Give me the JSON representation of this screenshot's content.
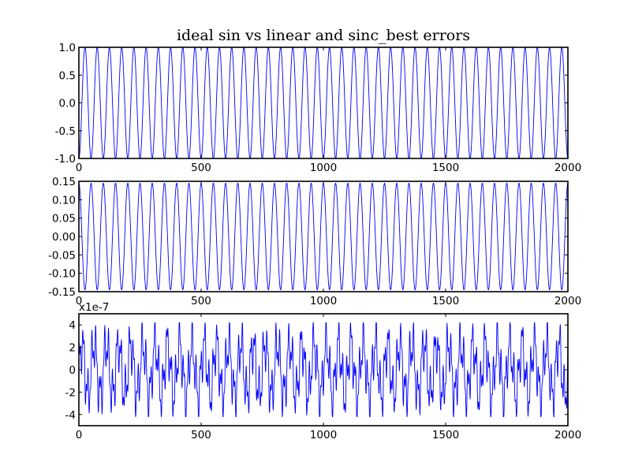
{
  "chart_data": [
    {
      "type": "line",
      "title": "ideal sin vs linear and sinc_best errors",
      "xlim": [
        0,
        2000
      ],
      "ylim": [
        -1.0,
        1.0
      ],
      "x_ticks": [
        0,
        500,
        1000,
        1500,
        2000
      ],
      "x_tick_labels": [
        "0",
        "500",
        "1000",
        "1500",
        "2000"
      ],
      "y_ticks": [
        -1.0,
        -0.5,
        0.0,
        0.5,
        1.0
      ],
      "y_tick_labels": [
        "-1.0",
        "-0.5",
        "0.0",
        "0.5",
        "1.0"
      ],
      "series": [
        {
          "color": "#0000ff",
          "generator": {
            "kind": "sine",
            "amplitude": 1.0,
            "cycles": 40,
            "phase": -1.5708,
            "n": 2001
          }
        }
      ]
    },
    {
      "type": "line",
      "xlim": [
        0,
        2000
      ],
      "ylim": [
        -0.15,
        0.15
      ],
      "x_ticks": [
        0,
        500,
        1000,
        1500,
        2000
      ],
      "x_tick_labels": [
        "0",
        "500",
        "1000",
        "1500",
        "2000"
      ],
      "y_ticks": [
        -0.15,
        -0.1,
        -0.05,
        0.0,
        0.05,
        0.1,
        0.15
      ],
      "y_tick_labels": [
        "-0.15",
        "-0.10",
        "-0.05",
        "0.00",
        "0.05",
        "0.10",
        "0.15"
      ],
      "series": [
        {
          "color": "#0000ff",
          "generator": {
            "kind": "sine",
            "amplitude": 0.145,
            "cycles": 40,
            "phase": 1.5708,
            "n": 2001
          }
        }
      ]
    },
    {
      "type": "line",
      "xlim": [
        0,
        2000
      ],
      "ylim": [
        -5,
        5
      ],
      "y_offset_label": "x1e-7",
      "x_ticks": [
        0,
        500,
        1000,
        1500,
        2000
      ],
      "x_tick_labels": [
        "0",
        "500",
        "1000",
        "1500",
        "2000"
      ],
      "y_ticks": [
        -4,
        -2,
        0,
        2,
        4
      ],
      "y_tick_labels": [
        "-4",
        "-2",
        "0",
        "2",
        "4"
      ],
      "series": [
        {
          "color": "#0000ff",
          "generator": {
            "kind": "multi-sine",
            "n": 2001,
            "components": [
              [
                2.3,
                40
              ],
              [
                1.7,
                117
              ],
              [
                1.0,
                263
              ]
            ],
            "clip": 4.2
          }
        }
      ]
    }
  ]
}
